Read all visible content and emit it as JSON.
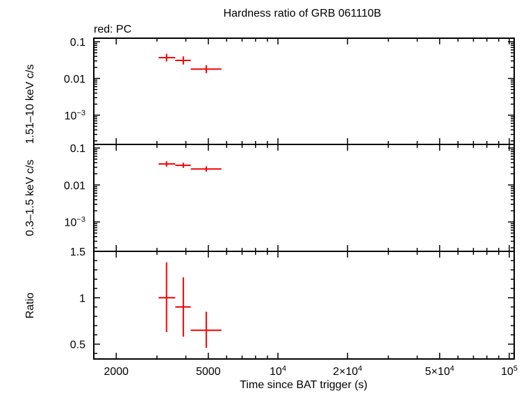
{
  "chart_data": {
    "type": "scatter",
    "title": "Hardness ratio of GRB 061110B",
    "legend_note": "red: PC",
    "xlabel": "Time since BAT trigger (s)",
    "x_scale": "log",
    "xlim": [
      1600,
      105000
    ],
    "x_ticks": [
      {
        "value": 2000,
        "label": "2000",
        "sup": ""
      },
      {
        "value": 5000,
        "label": "5000",
        "sup": ""
      },
      {
        "value": 10000,
        "label": "10",
        "sup": "4"
      },
      {
        "value": 20000,
        "label": "2×10",
        "sup": "4"
      },
      {
        "value": 50000,
        "label": "5×10",
        "sup": "4"
      },
      {
        "value": 100000,
        "label": "10",
        "sup": "5"
      }
    ],
    "series_color": "#ee0000",
    "panels": [
      {
        "id": "hard",
        "ylabel": "1.51–10 keV c/s",
        "y_scale": "log",
        "ylim": [
          0.00016,
          0.125
        ],
        "y_ticks": [
          {
            "value": 0.1,
            "label": "0.1",
            "sup": ""
          },
          {
            "value": 0.01,
            "label": "0.01",
            "sup": ""
          },
          {
            "value": 0.001,
            "label": "10",
            "sup": "−3"
          }
        ],
        "points": [
          {
            "x": 3300,
            "xlo": 3050,
            "xhi": 3600,
            "y": 0.037,
            "ylo": 0.029,
            "yhi": 0.047
          },
          {
            "x": 3900,
            "xlo": 3600,
            "xhi": 4200,
            "y": 0.031,
            "ylo": 0.024,
            "yhi": 0.04
          },
          {
            "x": 4900,
            "xlo": 4200,
            "xhi": 5700,
            "y": 0.018,
            "ylo": 0.014,
            "yhi": 0.023
          }
        ]
      },
      {
        "id": "soft",
        "ylabel": "0.3–1.5 keV c/s",
        "y_scale": "log",
        "ylim": [
          0.00016,
          0.125
        ],
        "y_ticks": [
          {
            "value": 0.1,
            "label": "0.1",
            "sup": ""
          },
          {
            "value": 0.01,
            "label": "0.01",
            "sup": ""
          },
          {
            "value": 0.001,
            "label": "10",
            "sup": "−3"
          }
        ],
        "points": [
          {
            "x": 3300,
            "xlo": 3050,
            "xhi": 3600,
            "y": 0.037,
            "ylo": 0.031,
            "yhi": 0.044
          },
          {
            "x": 3900,
            "xlo": 3600,
            "xhi": 4200,
            "y": 0.034,
            "ylo": 0.029,
            "yhi": 0.04
          },
          {
            "x": 4900,
            "xlo": 4200,
            "xhi": 5700,
            "y": 0.027,
            "ylo": 0.023,
            "yhi": 0.032
          }
        ]
      },
      {
        "id": "ratio",
        "ylabel": "Ratio",
        "y_scale": "linear",
        "ylim": [
          0.34,
          1.5
        ],
        "y_ticks": [
          {
            "value": 1.5,
            "label": "1.5",
            "sup": ""
          },
          {
            "value": 1.0,
            "label": "1",
            "sup": ""
          },
          {
            "value": 0.5,
            "label": "0.5",
            "sup": ""
          }
        ],
        "points": [
          {
            "x": 3300,
            "xlo": 3050,
            "xhi": 3600,
            "y": 1.0,
            "ylo": 0.63,
            "yhi": 1.38
          },
          {
            "x": 3900,
            "xlo": 3600,
            "xhi": 4200,
            "y": 0.9,
            "ylo": 0.58,
            "yhi": 1.22
          },
          {
            "x": 4900,
            "xlo": 4200,
            "xhi": 5700,
            "y": 0.65,
            "ylo": 0.46,
            "yhi": 0.85
          }
        ]
      }
    ]
  }
}
